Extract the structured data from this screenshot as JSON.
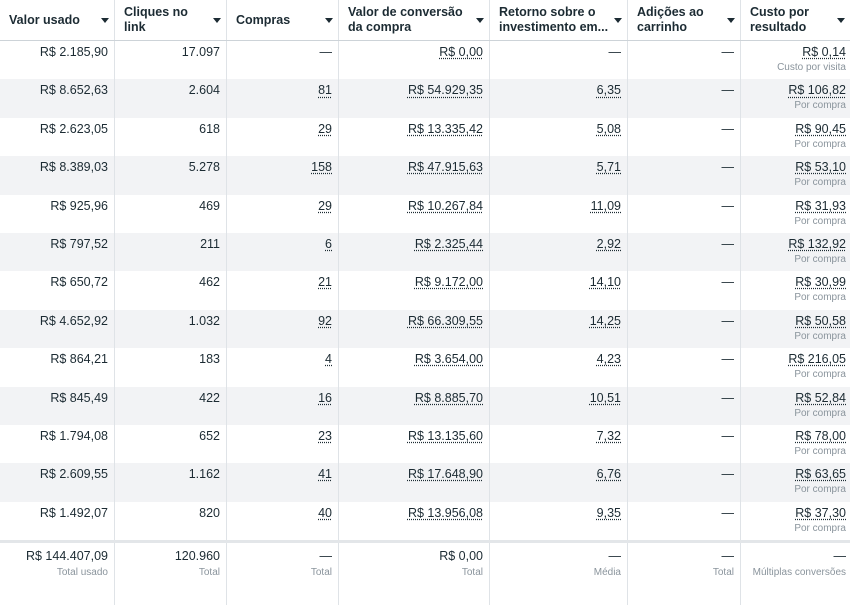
{
  "columns": [
    {
      "label": "Valor usado"
    },
    {
      "label": "Cliques no link"
    },
    {
      "label": "Compras"
    },
    {
      "label": "Valor de conversão da compra"
    },
    {
      "label": "Retorno sobre o investimento em..."
    },
    {
      "label": "Adições ao carrinho"
    },
    {
      "label": "Custo por resultado"
    }
  ],
  "rows": [
    {
      "spent": "R$ 2.185,90",
      "clicks": "17.097",
      "purchases": "—",
      "conv_value": "R$ 0,00",
      "roas": "—",
      "cart": "—",
      "cpr": "R$ 0,14",
      "cpr_sub": "Custo por visita"
    },
    {
      "spent": "R$ 8.652,63",
      "clicks": "2.604",
      "purchases": "81",
      "conv_value": "R$ 54.929,35",
      "roas": "6,35",
      "cart": "—",
      "cpr": "R$ 106,82",
      "cpr_sub": "Por compra"
    },
    {
      "spent": "R$ 2.623,05",
      "clicks": "618",
      "purchases": "29",
      "conv_value": "R$ 13.335,42",
      "roas": "5,08",
      "cart": "—",
      "cpr": "R$ 90,45",
      "cpr_sub": "Por compra"
    },
    {
      "spent": "R$ 8.389,03",
      "clicks": "5.278",
      "purchases": "158",
      "conv_value": "R$ 47.915,63",
      "roas": "5,71",
      "cart": "—",
      "cpr": "R$ 53,10",
      "cpr_sub": "Por compra"
    },
    {
      "spent": "R$ 925,96",
      "clicks": "469",
      "purchases": "29",
      "conv_value": "R$ 10.267,84",
      "roas": "11,09",
      "cart": "—",
      "cpr": "R$ 31,93",
      "cpr_sub": "Por compra"
    },
    {
      "spent": "R$ 797,52",
      "clicks": "211",
      "purchases": "6",
      "conv_value": "R$ 2.325,44",
      "roas": "2,92",
      "cart": "—",
      "cpr": "R$ 132,92",
      "cpr_sub": "Por compra"
    },
    {
      "spent": "R$ 650,72",
      "clicks": "462",
      "purchases": "21",
      "conv_value": "R$ 9.172,00",
      "roas": "14,10",
      "cart": "—",
      "cpr": "R$ 30,99",
      "cpr_sub": "Por compra"
    },
    {
      "spent": "R$ 4.652,92",
      "clicks": "1.032",
      "purchases": "92",
      "conv_value": "R$ 66.309,55",
      "roas": "14,25",
      "cart": "—",
      "cpr": "R$ 50,58",
      "cpr_sub": "Por compra"
    },
    {
      "spent": "R$ 864,21",
      "clicks": "183",
      "purchases": "4",
      "conv_value": "R$ 3.654,00",
      "roas": "4,23",
      "cart": "—",
      "cpr": "R$ 216,05",
      "cpr_sub": "Por compra"
    },
    {
      "spent": "R$ 845,49",
      "clicks": "422",
      "purchases": "16",
      "conv_value": "R$ 8.885,70",
      "roas": "10,51",
      "cart": "—",
      "cpr": "R$ 52,84",
      "cpr_sub": "Por compra"
    },
    {
      "spent": "R$ 1.794,08",
      "clicks": "652",
      "purchases": "23",
      "conv_value": "R$ 13.135,60",
      "roas": "7,32",
      "cart": "—",
      "cpr": "R$ 78,00",
      "cpr_sub": "Por compra"
    },
    {
      "spent": "R$ 2.609,55",
      "clicks": "1.162",
      "purchases": "41",
      "conv_value": "R$ 17.648,90",
      "roas": "6,76",
      "cart": "—",
      "cpr": "R$ 63,65",
      "cpr_sub": "Por compra"
    },
    {
      "spent": "R$ 1.492,07",
      "clicks": "820",
      "purchases": "40",
      "conv_value": "R$ 13.956,08",
      "roas": "9,35",
      "cart": "—",
      "cpr": "R$ 37,30",
      "cpr_sub": "Por compra"
    }
  ],
  "totals": {
    "spent": "R$ 144.407,09",
    "spent_sub": "Total usado",
    "clicks": "120.960",
    "clicks_sub": "Total",
    "purchases": "—",
    "purchases_sub": "Total",
    "conv_value": "R$ 0,00",
    "conv_value_sub": "Total",
    "roas": "—",
    "roas_sub": "Média",
    "cart": "—",
    "cart_sub": "Total",
    "cpr": "—",
    "cpr_sub": "Múltiplas conversões"
  }
}
